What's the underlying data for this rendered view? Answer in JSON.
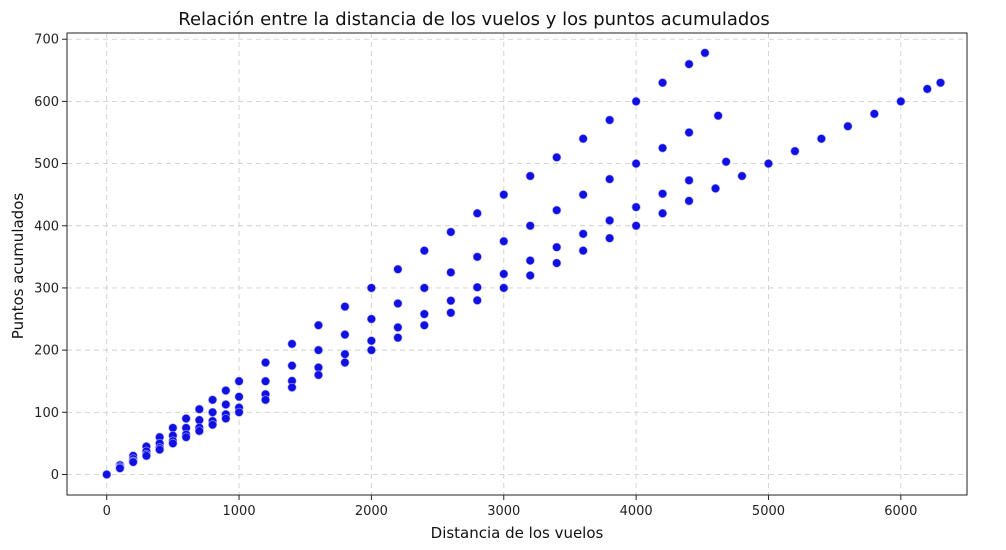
{
  "chart_data": {
    "type": "scatter",
    "title": "Relación entre la distancia de los vuelos y los puntos acumulados",
    "xlabel": "Distancia de los vuelos",
    "ylabel": "Puntos acumulados",
    "xlim": [
      -300,
      6500
    ],
    "ylim": [
      -33,
      710
    ],
    "xticks": [
      0,
      1000,
      2000,
      3000,
      4000,
      5000,
      6000
    ],
    "yticks": [
      0,
      100,
      200,
      300,
      400,
      500,
      600,
      700
    ],
    "xtick_labels": [
      "0",
      "1000",
      "2000",
      "3000",
      "4000",
      "5000",
      "6000"
    ],
    "ytick_labels": [
      "0",
      "100",
      "200",
      "300",
      "400",
      "500",
      "600",
      "700"
    ],
    "grid": true,
    "color": "#1010e0",
    "series": [
      {
        "x": [
          0,
          100,
          200,
          300,
          400,
          500,
          600,
          700,
          800,
          900,
          1000,
          1200,
          1400,
          1600,
          1800,
          2000,
          2200,
          2400,
          2600,
          2800,
          3000,
          3200,
          3400,
          3600,
          3800,
          4000,
          4200,
          4400,
          4520
        ],
        "y": [
          0,
          15,
          30,
          45,
          60,
          75,
          90,
          105,
          120,
          135,
          150,
          180,
          210,
          240,
          270,
          300,
          330,
          360,
          390,
          420,
          450,
          480,
          510,
          540,
          570,
          600,
          630,
          660,
          678
        ]
      },
      {
        "x": [
          100,
          200,
          300,
          400,
          500,
          600,
          700,
          800,
          900,
          1000,
          1200,
          1400,
          1600,
          1800,
          2000,
          2200,
          2400,
          2600,
          2800,
          3000,
          3200,
          3400,
          3600,
          3800,
          4000,
          4200,
          4400,
          4620
        ],
        "y": [
          12.5,
          25,
          37.5,
          50,
          62.5,
          75,
          87.5,
          100,
          112.5,
          125,
          150,
          175,
          200,
          225,
          250,
          275,
          300,
          325,
          350,
          375,
          400,
          425,
          450,
          475,
          500,
          525,
          550,
          577
        ]
      },
      {
        "x": [
          100,
          200,
          300,
          400,
          500,
          600,
          700,
          800,
          900,
          1000,
          1200,
          1400,
          1600,
          1800,
          2000,
          2200,
          2400,
          2600,
          2800,
          3000,
          3200,
          3400,
          3600,
          3800,
          4000,
          4200,
          4400,
          4680
        ],
        "y": [
          10.75,
          21.5,
          32.25,
          43,
          53.75,
          64.5,
          75.25,
          86,
          96.75,
          107.5,
          129,
          150.5,
          172,
          193.5,
          215,
          236.5,
          258,
          279.5,
          301,
          322.5,
          344,
          365.5,
          387,
          408.5,
          430,
          451.5,
          473,
          503
        ]
      },
      {
        "x": [
          100,
          200,
          300,
          400,
          500,
          600,
          700,
          800,
          900,
          1000,
          1200,
          1400,
          1600,
          1800,
          2000,
          2200,
          2400,
          2600,
          2800,
          3000,
          3200,
          3400,
          3600,
          3800,
          4000,
          4200,
          4400,
          4600,
          4800,
          5000,
          5200,
          5400,
          5600,
          5800,
          6000,
          6200,
          6300
        ],
        "y": [
          10,
          20,
          30,
          40,
          50,
          60,
          70,
          80,
          90,
          100,
          120,
          140,
          160,
          180,
          200,
          220,
          240,
          260,
          280,
          300,
          320,
          340,
          360,
          380,
          400,
          420,
          440,
          460,
          480,
          500,
          520,
          540,
          560,
          580,
          600,
          620,
          630
        ]
      }
    ]
  }
}
